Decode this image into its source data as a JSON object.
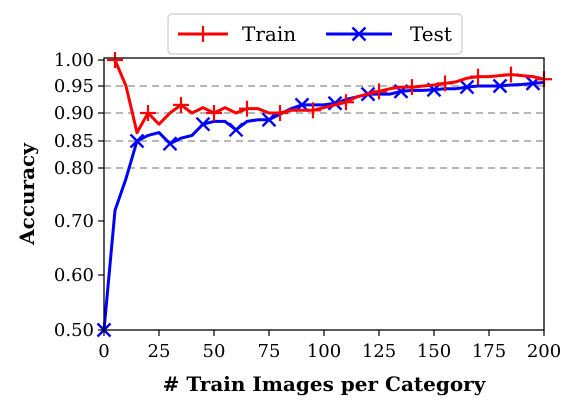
{
  "chart_data": {
    "type": "line",
    "xlabel": "# Train Images per Category",
    "ylabel": "Accuracy",
    "xlim": [
      0,
      200
    ],
    "ylim": [
      0.5,
      1.0
    ],
    "y_scale": "nonlinear (ticks 0.50, 0.60, 0.70 and 0.80–1.00 expanded)",
    "x_ticks": [
      "0",
      "25",
      "50",
      "75",
      "100",
      "125",
      "150",
      "175",
      "200"
    ],
    "y_ticks": [
      "0.50",
      "0.60",
      "0.70",
      "0.80",
      "0.85",
      "0.90",
      "0.95",
      "1.00"
    ],
    "reference_lines": [
      0.8,
      0.85,
      0.9,
      0.95
    ],
    "grid": "dashed horizontal reference lines at 0.80, 0.85, 0.90, 0.95",
    "legend_position": "top-center, above plot",
    "series": [
      {
        "name": "Train",
        "color": "#ff0000",
        "marker": "plus",
        "x": [
          5,
          10,
          15,
          20,
          25,
          30,
          35,
          40,
          45,
          50,
          55,
          60,
          65,
          70,
          75,
          80,
          85,
          90,
          95,
          100,
          105,
          110,
          115,
          120,
          125,
          130,
          135,
          140,
          145,
          150,
          155,
          160,
          165,
          170,
          175,
          180,
          185,
          190,
          195,
          200
        ],
        "values": [
          1.0,
          0.95,
          0.865,
          0.9,
          0.88,
          0.9,
          0.915,
          0.9,
          0.91,
          0.9,
          0.91,
          0.9,
          0.908,
          0.908,
          0.9,
          0.9,
          0.905,
          0.905,
          0.905,
          0.91,
          0.915,
          0.92,
          0.93,
          0.935,
          0.94,
          0.945,
          0.948,
          0.948,
          0.95,
          0.952,
          0.955,
          0.958,
          0.965,
          0.968,
          0.968,
          0.97,
          0.972,
          0.97,
          0.968,
          0.963
        ],
        "marker_x": [
          5,
          20,
          35,
          50,
          65,
          80,
          95,
          110,
          125,
          140,
          155,
          170,
          185,
          200
        ]
      },
      {
        "name": "Test",
        "color": "#0000ff",
        "marker": "x",
        "x": [
          0,
          5,
          10,
          15,
          20,
          25,
          30,
          35,
          40,
          45,
          50,
          55,
          60,
          65,
          70,
          75,
          80,
          85,
          90,
          95,
          100,
          105,
          110,
          115,
          120,
          125,
          130,
          135,
          140,
          145,
          150,
          155,
          160,
          165,
          170,
          175,
          180,
          185,
          190,
          195,
          200
        ],
        "values": [
          0.5,
          0.72,
          0.78,
          0.85,
          0.86,
          0.865,
          0.845,
          0.855,
          0.86,
          0.88,
          0.885,
          0.885,
          0.87,
          0.885,
          0.888,
          0.888,
          0.898,
          0.908,
          0.915,
          0.915,
          0.915,
          0.918,
          0.925,
          0.93,
          0.935,
          0.935,
          0.935,
          0.94,
          0.942,
          0.942,
          0.943,
          0.945,
          0.945,
          0.948,
          0.95,
          0.95,
          0.95,
          0.952,
          0.953,
          0.955,
          0.957
        ],
        "marker_x": [
          0,
          15,
          30,
          45,
          60,
          75,
          90,
          105,
          120,
          135,
          150,
          165,
          180,
          195
        ]
      }
    ]
  }
}
